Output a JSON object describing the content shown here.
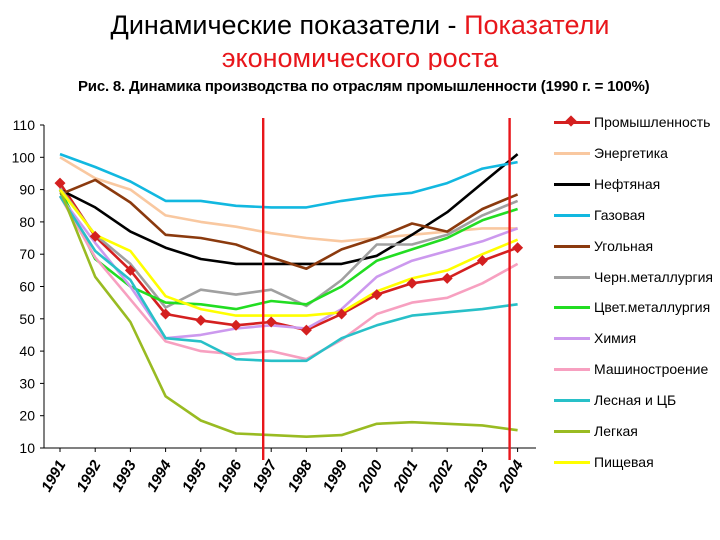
{
  "slide": {
    "title_black": "Динамические показатели - ",
    "title_red": "Показатели",
    "title_line2": "экономического роста"
  },
  "chart_data": {
    "type": "line",
    "title": "Рис. 8. Динамика производства по отраслям промышленности (1990 г. = 100%)",
    "xlabel": "",
    "ylabel": "",
    "categories": [
      "1991",
      "1992",
      "1993",
      "1994",
      "1995",
      "1996",
      "1997",
      "1998",
      "1999",
      "2000",
      "2001",
      "2002",
      "2003",
      "2004"
    ],
    "ylim": [
      10,
      110
    ],
    "yticks": [
      10,
      20,
      30,
      40,
      50,
      60,
      70,
      80,
      90,
      100,
      110
    ],
    "grid": false,
    "legend_position": "right",
    "highlight_years": [
      "1997",
      "2004"
    ],
    "highlight_color": "#e8161b",
    "series": [
      {
        "name": "Промышленность",
        "color": "#d42020",
        "marker": "diamond",
        "values": [
          92,
          75.5,
          65,
          51.5,
          49.5,
          48,
          49,
          46.5,
          51.5,
          57.5,
          61,
          62.5,
          68,
          72
        ]
      },
      {
        "name": "Энергетика",
        "color": "#f9c8a0",
        "values": [
          100,
          93.5,
          90,
          82,
          80,
          78.5,
          76.5,
          75,
          74,
          75,
          76,
          77,
          78,
          78
        ]
      },
      {
        "name": "Нефтяная",
        "color": "#000000",
        "values": [
          90,
          84.5,
          77,
          72,
          68.5,
          67,
          67,
          67,
          67,
          69.5,
          76,
          83,
          92,
          101
        ]
      },
      {
        "name": "Газовая",
        "color": "#12b8e0",
        "values": [
          101,
          97,
          92.5,
          86.5,
          86.5,
          85,
          84.5,
          84.5,
          86.5,
          88,
          89,
          92,
          96.5,
          98.5
        ]
      },
      {
        "name": "Угольная",
        "color": "#8b3a0e",
        "values": [
          88.5,
          93,
          86,
          76,
          75,
          73,
          69,
          65.5,
          71.5,
          75,
          79.5,
          77,
          84,
          88.5
        ]
      },
      {
        "name": "Черн.металлургия",
        "color": "#a0a0a0",
        "values": [
          90.5,
          76,
          67,
          53.5,
          59,
          57.5,
          59,
          54,
          62,
          73,
          73,
          76,
          82,
          86.5
        ]
      },
      {
        "name": "Цвет.металлургия",
        "color": "#22dd22",
        "values": [
          90,
          68.5,
          60,
          55,
          54.5,
          53,
          55.5,
          54.5,
          60,
          68,
          71.5,
          75,
          80.5,
          84
        ]
      },
      {
        "name": "Химия",
        "color": "#cc99ee",
        "values": [
          88,
          73.5,
          60,
          44,
          45,
          47,
          48,
          47,
          53,
          63,
          68,
          71,
          74,
          78
        ]
      },
      {
        "name": "Машиностроение",
        "color": "#f7a0c0",
        "values": [
          88,
          69,
          56,
          43,
          40,
          39,
          40,
          37.5,
          43.5,
          51.5,
          55,
          56.5,
          61,
          67
        ]
      },
      {
        "name": "Лесная и ЦБ",
        "color": "#28c0c8",
        "values": [
          88,
          71,
          62,
          44,
          43,
          37.5,
          37,
          37,
          44,
          48,
          51,
          52,
          53,
          54.5
        ]
      },
      {
        "name": "Легкая",
        "color": "#99bb22",
        "values": [
          90,
          63,
          49,
          26,
          18.5,
          14.5,
          14,
          13.5,
          14,
          17.5,
          18,
          17.5,
          17,
          15.5
        ]
      },
      {
        "name": "Пищевая",
        "color": "#ffff00",
        "values": [
          90,
          76,
          71,
          57,
          53,
          51,
          51,
          51,
          52,
          58.5,
          62.5,
          65,
          70,
          74.5
        ]
      }
    ]
  }
}
